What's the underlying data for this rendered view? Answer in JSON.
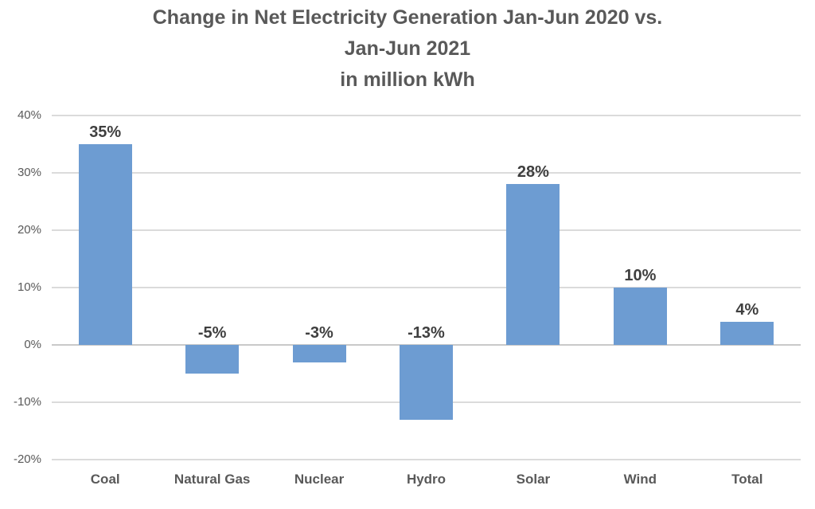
{
  "chart_data": {
    "type": "bar",
    "title": "Change in Net Electricity Generation Jan-Jun 2020 vs. Jan-Jun 2021 in million kWh",
    "title_lines": [
      "Change in Net Electricity Generation Jan-Jun 2020 vs.",
      "Jan-Jun 2021",
      "in million kWh"
    ],
    "categories": [
      "Coal",
      "Natural Gas",
      "Nuclear",
      "Hydro",
      "Solar",
      "Wind",
      "Total"
    ],
    "values": [
      35,
      -5,
      -3,
      -13,
      28,
      10,
      4
    ],
    "data_labels": [
      "35%",
      "-5%",
      "-3%",
      "-13%",
      "28%",
      "10%",
      "4%"
    ],
    "xlabel": "",
    "ylabel": "",
    "ylim": [
      -20,
      40
    ],
    "yticks": [
      {
        "value": 40,
        "label": "40%"
      },
      {
        "value": 30,
        "label": "30%"
      },
      {
        "value": 20,
        "label": "20%"
      },
      {
        "value": 10,
        "label": "10%"
      },
      {
        "value": 0,
        "label": "0%"
      },
      {
        "value": -10,
        "label": "-10%"
      },
      {
        "value": -20,
        "label": "-20%"
      }
    ],
    "grid": true,
    "legend": "none",
    "colors": {
      "bar": "#6D9CD2",
      "gridline": "#DBDBDB",
      "zero_axis_line": "#C9C9C9",
      "title_text": "#595959",
      "tick_label_text": "#595959",
      "data_label_text": "#3F3F3F",
      "category_label_text": "#595959",
      "background": "#FFFFFF"
    }
  }
}
